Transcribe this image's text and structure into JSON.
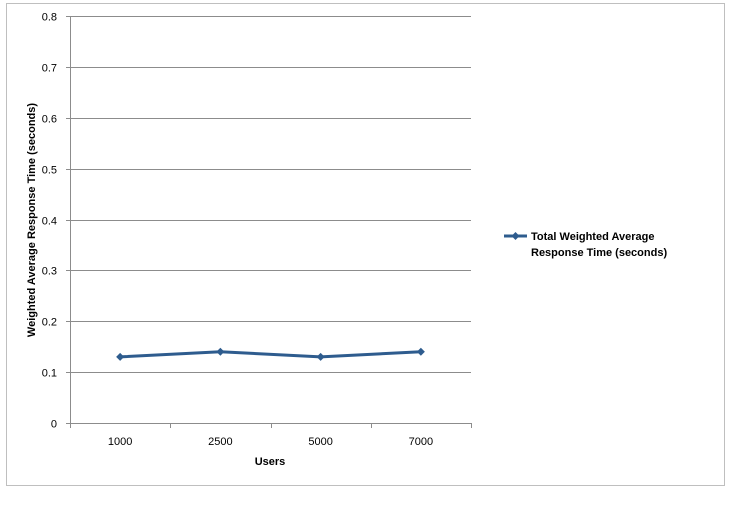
{
  "chart_data": {
    "type": "line",
    "title": "",
    "xlabel": "Users",
    "ylabel": "Weighted Average Response Time (seconds)",
    "categories": [
      "1000",
      "2500",
      "5000",
      "7000"
    ],
    "ylim": [
      0,
      0.8
    ],
    "yticks": [
      0,
      0.1,
      0.2,
      0.3,
      0.4,
      0.5,
      0.6,
      0.7,
      0.8
    ],
    "ytick_labels": [
      "0",
      "0.1",
      "0.2",
      "0.3",
      "0.4",
      "0.5",
      "0.6",
      "0.7",
      "0.8"
    ],
    "grid": "horizontal",
    "legend_position": "right",
    "series": [
      {
        "name": "Total Weighted Average Response Time (seconds)",
        "legend_lines": [
          "Total Weighted Average",
          "Response Time (seconds)"
        ],
        "values": [
          0.13,
          0.14,
          0.13,
          0.14
        ],
        "color": "#2e5c8e",
        "marker": "diamond"
      }
    ]
  }
}
